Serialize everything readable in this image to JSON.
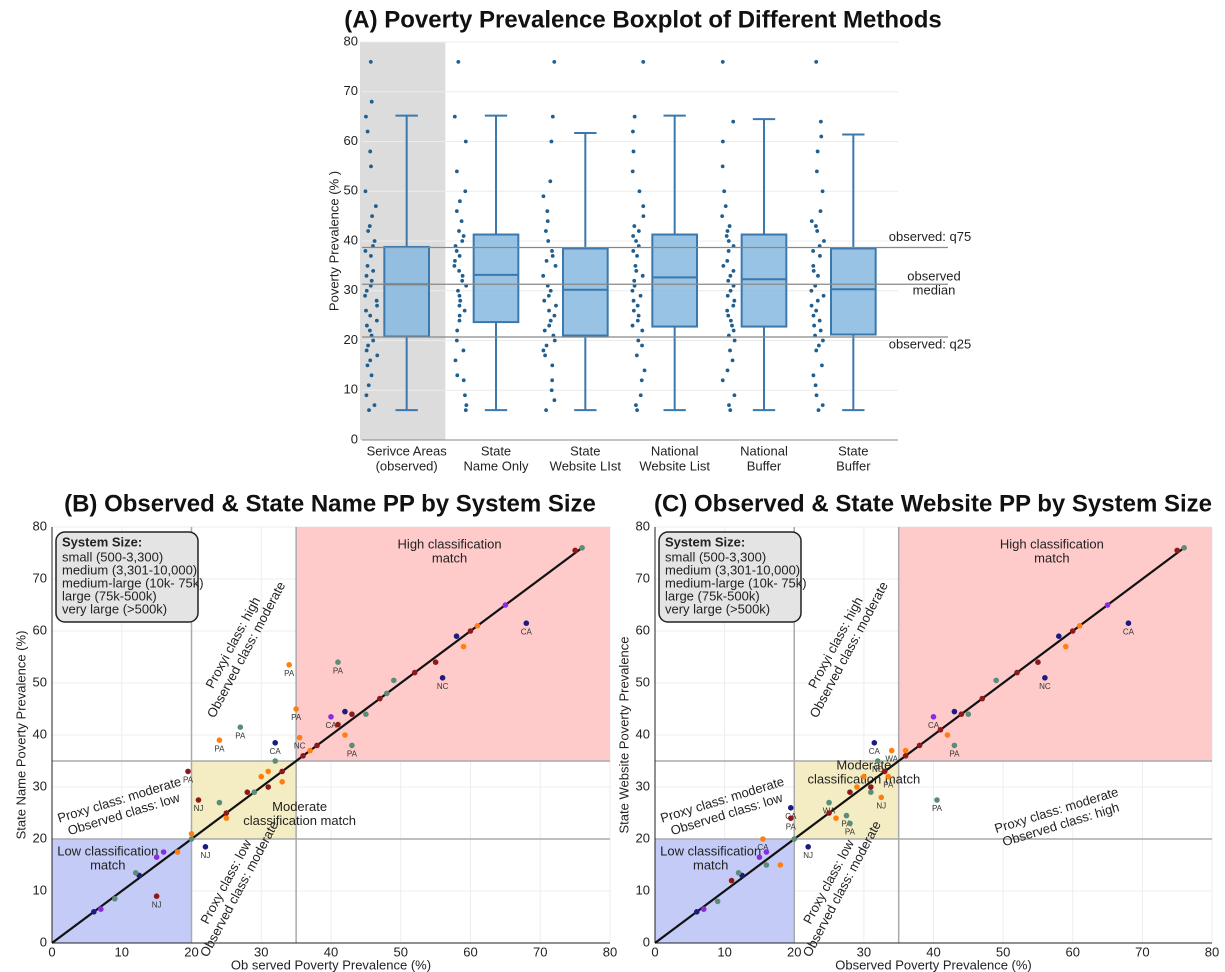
{
  "chart_data": [
    {
      "type": "box",
      "title": "(A) Poverty Prevalence Boxplot of Different Methods",
      "ylabel": "Poverty Prevalence (% )",
      "categories": [
        [
          "Serivce Areas",
          "(observed)"
        ],
        [
          "State",
          "Name Only"
        ],
        [
          "State",
          "Website LIst"
        ],
        [
          "National",
          "Website List"
        ],
        [
          "National",
          "Buffer"
        ],
        [
          "State",
          "Buffer"
        ]
      ],
      "ylim": [
        0,
        80
      ],
      "yticks": [
        0,
        10,
        20,
        30,
        40,
        50,
        60,
        70,
        80
      ],
      "grid": true,
      "color": "#86b8df",
      "edge_color": "#3a78ad",
      "point_color": "#1f5f8f",
      "highlight_color": "#dcdcdc",
      "boxes": [
        {
          "min": 6,
          "q1": 20.8,
          "median": 31.3,
          "q3": 38.8,
          "max": 65.2
        },
        {
          "min": 6,
          "q1": 23.7,
          "median": 33.2,
          "q3": 41.3,
          "max": 65.2
        },
        {
          "min": 6,
          "q1": 21,
          "median": 30.2,
          "q3": 38.5,
          "max": 61.7
        },
        {
          "min": 6,
          "q1": 22.8,
          "median": 32.7,
          "q3": 41.3,
          "max": 65.2
        },
        {
          "min": 6,
          "q1": 22.8,
          "median": 32.3,
          "q3": 41.3,
          "max": 64.5
        },
        {
          "min": 6,
          "q1": 21.2,
          "median": 30.3,
          "q3": 38.5,
          "max": 61.4
        }
      ],
      "points": [
        [
          76,
          68,
          65,
          62,
          58,
          55,
          50,
          47,
          45,
          43,
          42,
          40,
          39,
          38,
          37,
          35,
          34,
          33,
          32,
          31,
          30,
          29,
          28,
          27,
          26,
          25,
          24,
          23,
          22,
          21,
          20,
          19,
          18,
          17,
          16,
          15,
          13,
          11,
          9,
          7,
          6
        ],
        [
          76,
          65,
          60,
          54,
          50,
          48,
          46,
          44,
          42,
          41,
          40,
          39,
          38,
          37,
          36,
          35,
          34,
          33,
          32,
          31,
          30,
          29,
          28,
          27,
          26,
          25,
          24,
          22,
          20,
          18,
          16,
          13,
          12,
          9,
          7,
          6
        ],
        [
          76,
          65,
          60,
          52,
          49,
          46,
          44,
          42,
          40,
          38,
          37,
          36,
          35,
          33,
          31,
          30,
          29,
          28,
          27,
          26,
          25,
          24,
          23,
          22,
          21,
          20,
          19,
          18,
          17,
          15,
          12,
          10,
          8,
          6
        ],
        [
          76,
          65,
          62,
          58,
          54,
          50,
          47,
          45,
          43,
          42,
          41,
          40,
          39,
          38,
          37,
          35,
          34,
          33,
          32,
          31,
          30,
          29,
          28,
          27,
          26,
          25,
          24,
          23,
          22,
          20,
          19,
          17,
          14,
          12,
          9,
          7,
          6
        ],
        [
          76,
          64,
          60,
          55,
          50,
          47,
          45,
          43,
          42,
          41,
          40,
          39,
          38,
          36,
          35,
          34,
          33,
          32,
          31,
          30,
          29,
          28,
          27,
          26,
          25,
          24,
          23,
          22,
          21,
          20,
          18,
          16,
          14,
          12,
          9,
          7,
          6
        ],
        [
          76,
          64,
          61,
          58,
          54,
          50,
          46,
          44,
          43,
          42,
          40,
          39,
          38,
          37,
          35,
          34,
          33,
          31,
          30,
          29,
          28,
          27,
          26,
          25,
          24,
          23,
          22,
          21,
          20,
          19,
          18,
          15,
          13,
          11,
          9,
          7,
          6
        ]
      ],
      "reference_lines": [
        {
          "label": [
            "observed: q75"
          ],
          "value": 38.7
        },
        {
          "label": [
            "observed",
            "median"
          ],
          "value": 31.3
        },
        {
          "label": [
            "observed: q25"
          ],
          "value": 20.7
        }
      ]
    },
    {
      "type": "scatter",
      "title": "(B) Observed & State Name PP by System Size",
      "xlabel": "Ob served Poverty Prevalence (%)",
      "ylabel": "State Name Poverty Prevalence (%)",
      "xlim": [
        0,
        80
      ],
      "ylim": [
        0,
        80
      ],
      "xticks": [
        0,
        10,
        20,
        30,
        40,
        50,
        60,
        70,
        80
      ],
      "yticks": [
        0,
        10,
        20,
        30,
        40,
        50,
        60,
        70,
        80
      ],
      "grid": true,
      "thresholds": [
        20,
        35
      ],
      "diagonal": [
        0,
        76
      ],
      "legend_title": "System Size:",
      "regions": [
        {
          "label": [
            "Low classification",
            "match"
          ],
          "range": [
            0,
            20
          ],
          "color": "#c4cbf6",
          "text_color": "#2233cc"
        },
        {
          "label": [
            "Moderate",
            "classification match"
          ],
          "range": [
            20,
            35
          ],
          "color": "#f4ecc3",
          "text_color": "#d4a800"
        },
        {
          "label": [
            "High classification",
            "match"
          ],
          "range": [
            35,
            80
          ],
          "color": "#ffcaca",
          "text_color": "#e0302a"
        }
      ],
      "annotations": [
        [
          "Proxyi class: high",
          "Observed class: moderate"
        ],
        [
          "Proxy class: moderate",
          "Observed class: low"
        ],
        [
          "Proxy class: low",
          "Observed class: moderate"
        ]
      ],
      "series": [
        {
          "name": "small (500-3,300)",
          "color": "#8a2be2",
          "x": [
            7,
            15,
            16,
            40,
            65
          ],
          "y": [
            6.5,
            16.5,
            17.5,
            43.5,
            65
          ],
          "labels": [
            null,
            null,
            null,
            "CA",
            null
          ]
        },
        {
          "name": "medium (3,301-10,000)",
          "color": "#1c1c80",
          "x": [
            6,
            12.5,
            22,
            32,
            42,
            56,
            58,
            68
          ],
          "y": [
            6,
            13,
            18.5,
            38.5,
            44.5,
            51,
            59,
            61.5
          ],
          "labels": [
            null,
            null,
            "NJ",
            "CA",
            null,
            "NC",
            null,
            "CA"
          ]
        },
        {
          "name": "medium-large (10k- 75k)",
          "color": "#5b8c78",
          "x": [
            9,
            12,
            20,
            24,
            27,
            29,
            32,
            41,
            43,
            45,
            48,
            49,
            76
          ],
          "y": [
            8.5,
            13.5,
            20,
            27,
            41.5,
            29,
            35,
            54,
            38,
            44,
            48,
            50.5,
            76
          ],
          "labels": [
            null,
            null,
            null,
            null,
            "PA",
            null,
            null,
            "PA",
            "PA",
            null,
            null,
            null,
            null
          ]
        },
        {
          "name": "large (75k-500k)",
          "color": "#ff7f0e",
          "x": [
            18,
            20,
            24,
            25,
            30,
            31,
            33,
            34,
            35,
            35.5,
            37,
            42,
            59,
            61
          ],
          "y": [
            17.5,
            21,
            39,
            24,
            32,
            33,
            31,
            53.5,
            45,
            39.5,
            37,
            40,
            57,
            61
          ],
          "labels": [
            null,
            null,
            "PA",
            null,
            null,
            null,
            null,
            "PA",
            "PA",
            "NC",
            null,
            null,
            null,
            null
          ]
        },
        {
          "name": "very large (>500k)",
          "color": "#8b1a1a",
          "x": [
            15,
            19.5,
            21,
            25,
            28,
            31,
            33,
            36,
            38,
            41,
            43,
            47,
            52,
            55,
            60,
            75
          ],
          "y": [
            9,
            33,
            27.5,
            25,
            29,
            30,
            33,
            36,
            38,
            42,
            44,
            47,
            52,
            54,
            60,
            75.5
          ],
          "labels": [
            "NJ",
            "PA",
            "NJ",
            null,
            null,
            null,
            null,
            null,
            null,
            null,
            null,
            null,
            null,
            null,
            null,
            null
          ]
        }
      ]
    },
    {
      "type": "scatter",
      "title": "(C) Observed & State Website PP by System Size",
      "xlabel": "Observed Poverty Prevalence (%)",
      "ylabel": "State Website Poverty Prevalence",
      "xlim": [
        0,
        80
      ],
      "ylim": [
        0,
        80
      ],
      "xticks": [
        0,
        10,
        20,
        30,
        40,
        50,
        60,
        70,
        80
      ],
      "yticks": [
        0,
        10,
        20,
        30,
        40,
        50,
        60,
        70,
        80
      ],
      "grid": true,
      "thresholds": [
        20,
        35
      ],
      "diagonal": [
        0,
        76
      ],
      "legend_title": "System Size:",
      "regions": [
        {
          "label": [
            "Low classification",
            "match"
          ],
          "range": [
            0,
            20
          ],
          "color": "#c4cbf6",
          "text_color": "#2233cc"
        },
        {
          "label": [
            "Moderate",
            "classification match"
          ],
          "range": [
            20,
            35
          ],
          "color": "#f4ecc3",
          "text_color": "#d4a800"
        },
        {
          "label": [
            "High classification",
            "match"
          ],
          "range": [
            35,
            80
          ],
          "color": "#ffcaca",
          "text_color": "#e0302a"
        }
      ],
      "annotations": [
        [
          "Proxyi class: high",
          "Observed class: moderate"
        ],
        [
          "Proxy class: moderate",
          "Observed class: low"
        ],
        [
          "Proxy class: low",
          "Observed class: moderate"
        ],
        [
          "Proxy class: moderate",
          "Observed class: high"
        ]
      ],
      "series": [
        {
          "name": "small (500-3,300)",
          "color": "#8a2be2",
          "x": [
            7,
            15,
            16,
            40,
            65
          ],
          "y": [
            6.5,
            16.5,
            17.5,
            43.5,
            65
          ],
          "labels": [
            null,
            null,
            null,
            "CA",
            null
          ]
        },
        {
          "name": "medium (3,301-10,000)",
          "color": "#1c1c80",
          "x": [
            6,
            12.5,
            19.5,
            22,
            31.5,
            43,
            56,
            58,
            68
          ],
          "y": [
            6,
            13,
            26,
            18.5,
            38.5,
            44.5,
            51,
            59,
            61.5
          ],
          "labels": [
            null,
            null,
            "CA",
            "NJ",
            "CA",
            null,
            "NC",
            null,
            "CA"
          ]
        },
        {
          "name": "medium-large (10k- 75k)",
          "color": "#5b8c78",
          "x": [
            9,
            12,
            16,
            20,
            25,
            27.5,
            28,
            31,
            32,
            40.5,
            43,
            45,
            49,
            76
          ],
          "y": [
            8,
            13.5,
            15,
            20,
            27,
            24.5,
            23,
            29,
            35,
            27.5,
            38,
            44,
            50.5,
            76
          ],
          "labels": [
            null,
            null,
            null,
            null,
            "WA",
            "PA",
            "PA",
            null,
            "NC",
            "PA",
            "PA",
            null,
            null,
            null
          ]
        },
        {
          "name": "large (75k-500k)",
          "color": "#ff7f0e",
          "x": [
            15.5,
            18,
            26,
            29,
            30,
            32.5,
            33.5,
            34,
            36,
            42,
            59,
            61
          ],
          "y": [
            20,
            15,
            24,
            30,
            32,
            28,
            32,
            37,
            37,
            40,
            57,
            61
          ],
          "labels": [
            "CA",
            null,
            null,
            null,
            null,
            "NJ",
            "PA",
            "WA",
            null,
            null,
            null,
            null
          ]
        },
        {
          "name": "very large (>500k)",
          "color": "#8b1a1a",
          "x": [
            11,
            19.5,
            25,
            28,
            31,
            33,
            36,
            38,
            41,
            44,
            47,
            52,
            55,
            60,
            75
          ],
          "y": [
            12,
            24,
            25,
            29,
            30,
            33,
            36,
            38,
            41,
            44,
            47,
            52,
            54,
            60,
            75.5
          ],
          "labels": [
            null,
            "PA",
            null,
            null,
            null,
            null,
            null,
            null,
            null,
            null,
            null,
            null,
            null,
            null,
            null
          ]
        }
      ]
    }
  ]
}
